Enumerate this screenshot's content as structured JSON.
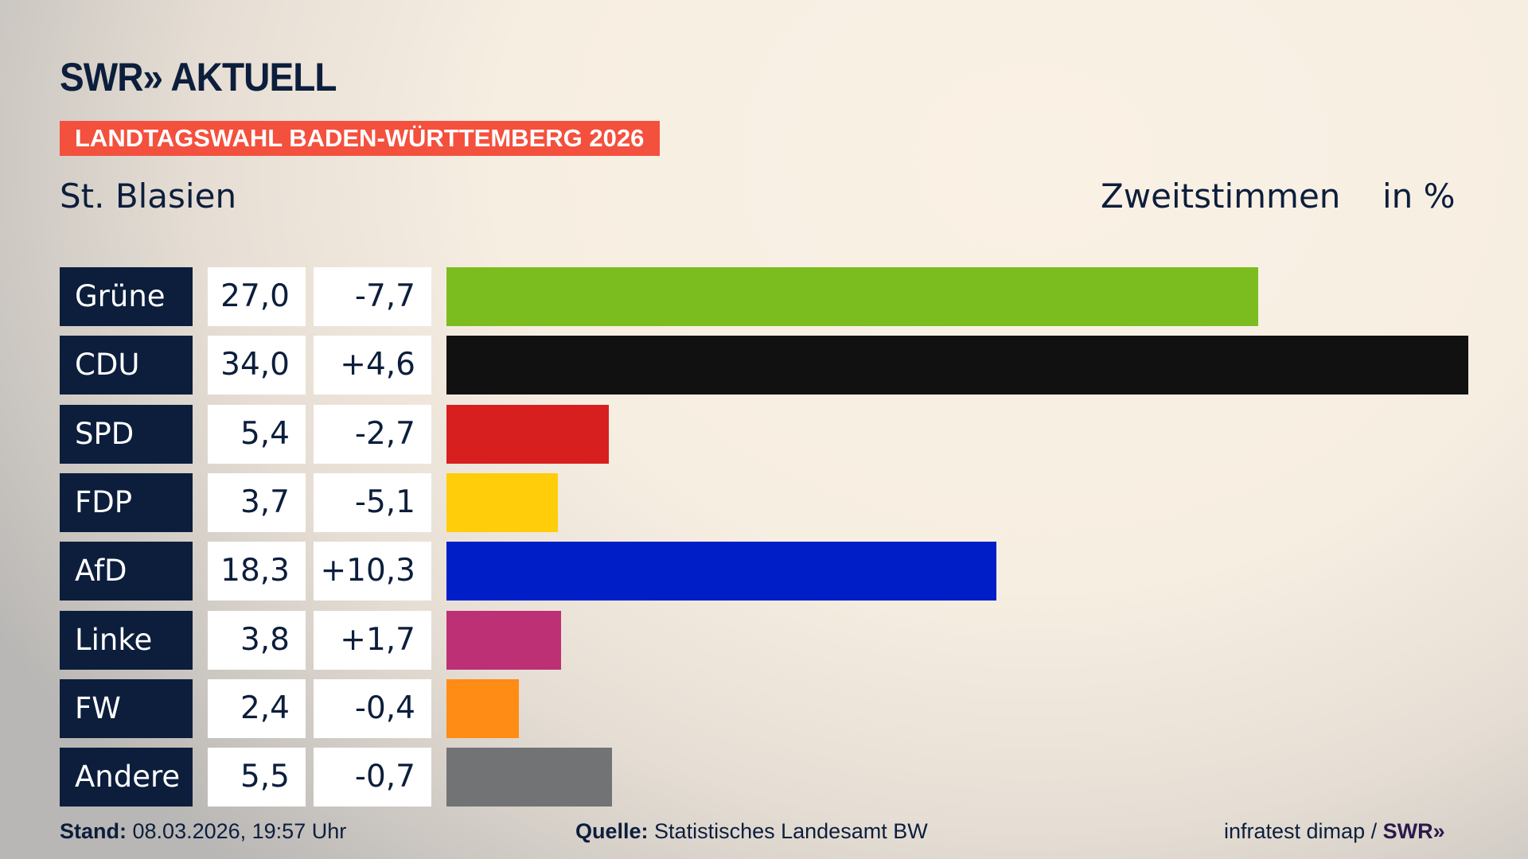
{
  "header": {
    "logo": "SWR» AKTUELL",
    "banner": "LANDTAGSWAHL BADEN-WÜRTTEMBERG 2026",
    "place": "St. Blasien",
    "metric": "Zweitstimmen",
    "unit": "in %"
  },
  "chart_data": {
    "type": "bar",
    "orientation": "horizontal",
    "categories": [
      "Grüne",
      "CDU",
      "SPD",
      "FDP",
      "AfD",
      "Linke",
      "FW",
      "Andere"
    ],
    "values": [
      27.0,
      34.0,
      5.4,
      3.7,
      18.3,
      3.8,
      2.4,
      5.5
    ],
    "value_labels": [
      "27,0",
      "34,0",
      "5,4",
      "3,7",
      "18,3",
      "3,8",
      "2,4",
      "5,5"
    ],
    "diff_labels": [
      "-7,7",
      "+4,6",
      "-2,7",
      "-5,1",
      "+10,3",
      "+1,7",
      "-0,4",
      "-0,7"
    ],
    "colors": [
      "#7bbd1f",
      "#111111",
      "#d81f1f",
      "#ffcd0a",
      "#001ec8",
      "#bd3075",
      "#ff8c14",
      "#727374"
    ],
    "xlim": [
      0,
      34.0
    ],
    "grid": false
  },
  "footer": {
    "stand_label": "Stand:",
    "stand": "08.03.2026, 19:57 Uhr",
    "source_label": "Quelle:",
    "source": "Statistisches Landesamt BW",
    "credit": "infratest dimap / ",
    "credit_logo": "SWR»"
  }
}
